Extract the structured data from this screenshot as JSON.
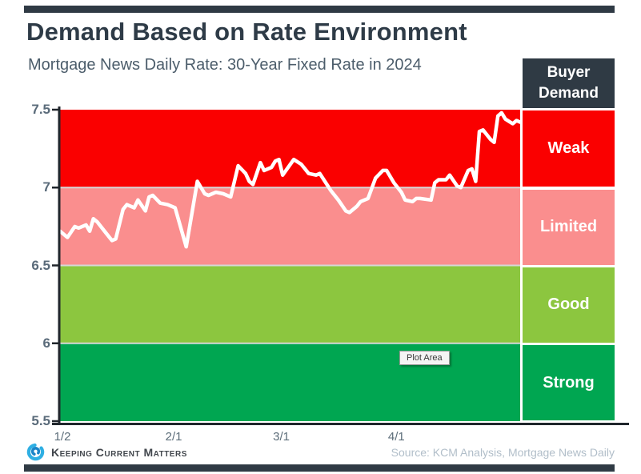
{
  "colors": {
    "accent_navy": "#2f3a44",
    "band_weak_red": "#fa0000",
    "band_limited_pink": "#fa8e8e",
    "band_good_green": "#8cc63f",
    "band_strong_green": "#00a651",
    "rate_line": "#ffffff",
    "axis": "#20262c",
    "gridline": "#d7d7d7",
    "axis_label": "#5a6b7a",
    "source_text": "#b1bec9",
    "logo_blue": "#2fafe3"
  },
  "ui": {
    "plot_area_tooltip": "Plot Area"
  },
  "footer": {
    "brand": "Keeping Current Matters",
    "source": "Source: KCM Analysis, Mortgage News Daily"
  },
  "chart_data": {
    "type": "line",
    "title": "Demand Based on Rate Environment",
    "subtitle": "Mortgage News Daily Rate: 30-Year Fixed Rate in 2024",
    "legend_title": "Buyer Demand",
    "ylim": [
      5.5,
      7.5
    ],
    "yticks": [
      {
        "value": 7.5,
        "label": "7.5"
      },
      {
        "value": 7.0,
        "label": "7"
      },
      {
        "value": 6.5,
        "label": "6.5"
      },
      {
        "value": 6.0,
        "label": "6"
      },
      {
        "value": 5.5,
        "label": "5.5"
      }
    ],
    "x_domain_days": [
      2,
      126
    ],
    "xticks": [
      {
        "day": 2,
        "label": "1/2"
      },
      {
        "day": 32,
        "label": "2/1"
      },
      {
        "day": 61,
        "label": "3/1"
      },
      {
        "day": 92,
        "label": "4/1"
      }
    ],
    "grid": "horizontal-only",
    "legend_position": "right",
    "bands": [
      {
        "label": "Weak",
        "range": [
          7.0,
          7.5
        ],
        "color": "#fa0000"
      },
      {
        "label": "Limited",
        "range": [
          6.5,
          7.0
        ],
        "color": "#fa8e8e"
      },
      {
        "label": "Good",
        "range": [
          6.0,
          6.5
        ],
        "color": "#8cc63f"
      },
      {
        "label": "Strong",
        "range": [
          5.5,
          6.0
        ],
        "color": "#00a651"
      }
    ],
    "series": [
      {
        "name": "30-Year Fixed Rate (Mortgage News Daily)",
        "color": "#ffffff",
        "x_unit": "day of year 2024",
        "points": [
          [
            2,
            6.72
          ],
          [
            4,
            6.68
          ],
          [
            6,
            6.75
          ],
          [
            7,
            6.74
          ],
          [
            9,
            6.76
          ],
          [
            10,
            6.72
          ],
          [
            11,
            6.8
          ],
          [
            12,
            6.78
          ],
          [
            14,
            6.72
          ],
          [
            16,
            6.66
          ],
          [
            17,
            6.67
          ],
          [
            19,
            6.86
          ],
          [
            20,
            6.89
          ],
          [
            22,
            6.87
          ],
          [
            23,
            6.92
          ],
          [
            25,
            6.85
          ],
          [
            26,
            6.94
          ],
          [
            27,
            6.95
          ],
          [
            29,
            6.9
          ],
          [
            31,
            6.89
          ],
          [
            33,
            6.87
          ],
          [
            36,
            6.62
          ],
          [
            39,
            7.04
          ],
          [
            41,
            6.96
          ],
          [
            42,
            6.95
          ],
          [
            44,
            6.97
          ],
          [
            46,
            6.96
          ],
          [
            48,
            6.94
          ],
          [
            50,
            7.14
          ],
          [
            52,
            7.09
          ],
          [
            53,
            7.04
          ],
          [
            54,
            7.02
          ],
          [
            56,
            7.16
          ],
          [
            57,
            7.11
          ],
          [
            59,
            7.13
          ],
          [
            60,
            7.17
          ],
          [
            61,
            7.18
          ],
          [
            62,
            7.08
          ],
          [
            65,
            7.18
          ],
          [
            67,
            7.15
          ],
          [
            69,
            7.09
          ],
          [
            71,
            7.08
          ],
          [
            72,
            7.09
          ],
          [
            75,
            6.98
          ],
          [
            77,
            6.92
          ],
          [
            79,
            6.85
          ],
          [
            80,
            6.84
          ],
          [
            82,
            6.88
          ],
          [
            83,
            6.91
          ],
          [
            85,
            6.93
          ],
          [
            87,
            7.06
          ],
          [
            89,
            7.11
          ],
          [
            90,
            7.11
          ],
          [
            92,
            7.03
          ],
          [
            94,
            6.97
          ],
          [
            95,
            6.92
          ],
          [
            97,
            6.91
          ],
          [
            98,
            6.93
          ],
          [
            99,
            6.93
          ],
          [
            102,
            6.92
          ],
          [
            103,
            7.03
          ],
          [
            104,
            7.05
          ],
          [
            106,
            7.05
          ],
          [
            107,
            7.08
          ],
          [
            109,
            7.01
          ],
          [
            110,
            7.0
          ],
          [
            112,
            7.11
          ],
          [
            113,
            7.12
          ],
          [
            114,
            7.04
          ],
          [
            115,
            7.36
          ],
          [
            116,
            7.37
          ],
          [
            118,
            7.31
          ],
          [
            119,
            7.29
          ],
          [
            120,
            7.46
          ],
          [
            121,
            7.48
          ],
          [
            122,
            7.44
          ],
          [
            124,
            7.41
          ],
          [
            125,
            7.43
          ],
          [
            126,
            7.42
          ]
        ]
      }
    ]
  }
}
